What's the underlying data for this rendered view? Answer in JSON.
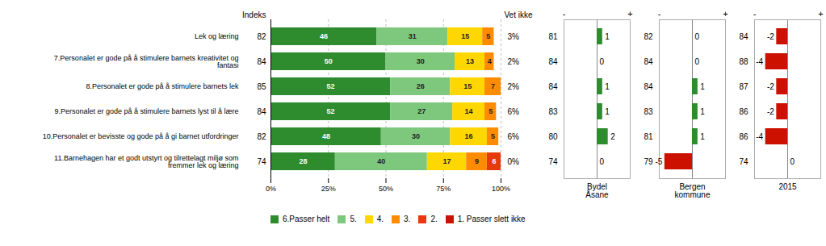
{
  "chart_data": [
    {
      "type": "bar",
      "orientation": "horizontal",
      "stacked": true,
      "categories": [
        "Lek og læring",
        "7.Personalet er gode på å stimulere barnets kreativitet og\nfantasi",
        "8.Personalet er gode på å stimulere barnets lek",
        "9.Personalet er gode på å stimulere barnets lyst til å lære",
        "10.Personalet er bevisste og gode på å gi barnet utfordringer",
        "11.Barnehagen har et godt utstyrt og tilrettelagt miljø som\nfremmer lek og læring"
      ],
      "series": [
        {
          "name": "6.Passer helt",
          "color": "#2e8b2e",
          "values": [
            46,
            50,
            52,
            52,
            48,
            28
          ]
        },
        {
          "name": "5.",
          "color": "#7dc87d",
          "values": [
            31,
            30,
            26,
            27,
            30,
            40
          ]
        },
        {
          "name": "4.",
          "color": "#ffd700",
          "values": [
            15,
            13,
            15,
            14,
            16,
            17
          ]
        },
        {
          "name": "3.",
          "color": "#ff8c00",
          "values": [
            5,
            4,
            7,
            5,
            5,
            9
          ]
        },
        {
          "name": "2.",
          "color": "#e8390a",
          "values": [
            0,
            0,
            0,
            0,
            0,
            6
          ]
        },
        {
          "name": "1. Passer slett ikke",
          "color": "#cc1100",
          "values": [
            0,
            0,
            0,
            0,
            0,
            0
          ]
        }
      ],
      "xlim": [
        0,
        100
      ],
      "xticks": [
        {
          "value": 0,
          "label": "0%"
        },
        {
          "value": 25,
          "label": "25%"
        },
        {
          "value": 50,
          "label": "50%"
        },
        {
          "value": 75,
          "label": "75%"
        },
        {
          "value": 100,
          "label": "100%"
        }
      ],
      "grid": true,
      "data_labels": true,
      "legend": "bottom",
      "indeks": {
        "title": "Indeks",
        "values": [
          82,
          84,
          85,
          84,
          82,
          74
        ]
      },
      "vet_ikke": {
        "title": "Vet ikke",
        "values": [
          3,
          2,
          2,
          6,
          6,
          0
        ],
        "value_labels": [
          "3%",
          "2%",
          "2%",
          "6%",
          "6%",
          "0%"
        ]
      }
    },
    {
      "type": "bar",
      "orientation": "horizontal",
      "xlabel": "Bydel\nÅsane",
      "categories": [
        "Lek og læring",
        "7.Personalet er gode på å stimulere barnets kreativitet og\nfantasi",
        "8.Personalet er gode på å stimulere barnets lek",
        "9.Personalet er gode på å stimulere barnets lyst til å lære",
        "10.Personalet er bevisste og gode på å gi barnet utfordringer",
        "11.Barnehagen har et godt utstyrt og tilrettelagt miljø som\nfremmer lek og læring"
      ],
      "values": [
        1,
        0,
        1,
        1,
        2,
        0
      ],
      "colors": [
        "#2e8b2e",
        null,
        "#2e8b2e",
        "#2e8b2e",
        "#2e8b2e",
        null
      ],
      "reference_values": [
        81,
        84,
        84,
        83,
        80,
        74
      ],
      "xlim": [
        -6,
        6
      ],
      "xticks": [
        {
          "value": -6,
          "label": "-"
        },
        {
          "value": 6,
          "label": "+"
        }
      ],
      "tick_labels": "x",
      "data_labels": true
    },
    {
      "type": "bar",
      "orientation": "horizontal",
      "xlabel": "Bergen\nkommune",
      "categories": [
        "Lek og læring",
        "7.Personalet er gode på å stimulere barnets kreativitet og\nfantasi",
        "8.Personalet er gode på å stimulere barnets lek",
        "9.Personalet er gode på å stimulere barnets lyst til å lære",
        "10.Personalet er bevisste og gode på å gi barnet utfordringer",
        "11.Barnehagen har et godt utstyrt og tilrettelagt miljø som\nfremmer lek og læring"
      ],
      "values": [
        0,
        0,
        1,
        1,
        1,
        -5
      ],
      "colors": [
        null,
        null,
        "#2e8b2e",
        "#2e8b2e",
        "#2e8b2e",
        "#cc1100"
      ],
      "reference_values": [
        82,
        84,
        84,
        83,
        81,
        79
      ],
      "xlim": [
        -6,
        6
      ],
      "xticks": [
        {
          "value": -6,
          "label": "-"
        },
        {
          "value": 6,
          "label": "+"
        }
      ],
      "tick_labels": "x",
      "data_labels": true
    },
    {
      "type": "bar",
      "orientation": "horizontal",
      "xlabel": "2015",
      "categories": [
        "Lek og læring",
        "7.Personalet er gode på å stimulere barnets kreativitet og\nfantasi",
        "8.Personalet er gode på å stimulere barnets lek",
        "9.Personalet er gode på å stimulere barnets lyst til å lære",
        "10.Personalet er bevisste og gode på å gi barnet utfordringer",
        "11.Barnehagen har et godt utstyrt og tilrettelagt miljø som\nfremmer lek og læring"
      ],
      "values": [
        -2,
        -4,
        -2,
        -2,
        -4,
        0
      ],
      "colors": [
        "#cc1100",
        "#cc1100",
        "#cc1100",
        "#cc1100",
        "#cc1100",
        null
      ],
      "reference_values": [
        84,
        88,
        87,
        86,
        86,
        74
      ],
      "xlim": [
        -6,
        6
      ],
      "xticks": [
        {
          "value": -6,
          "label": "-"
        },
        {
          "value": 6,
          "label": "+"
        }
      ],
      "tick_labels": "x",
      "data_labels": true
    }
  ]
}
